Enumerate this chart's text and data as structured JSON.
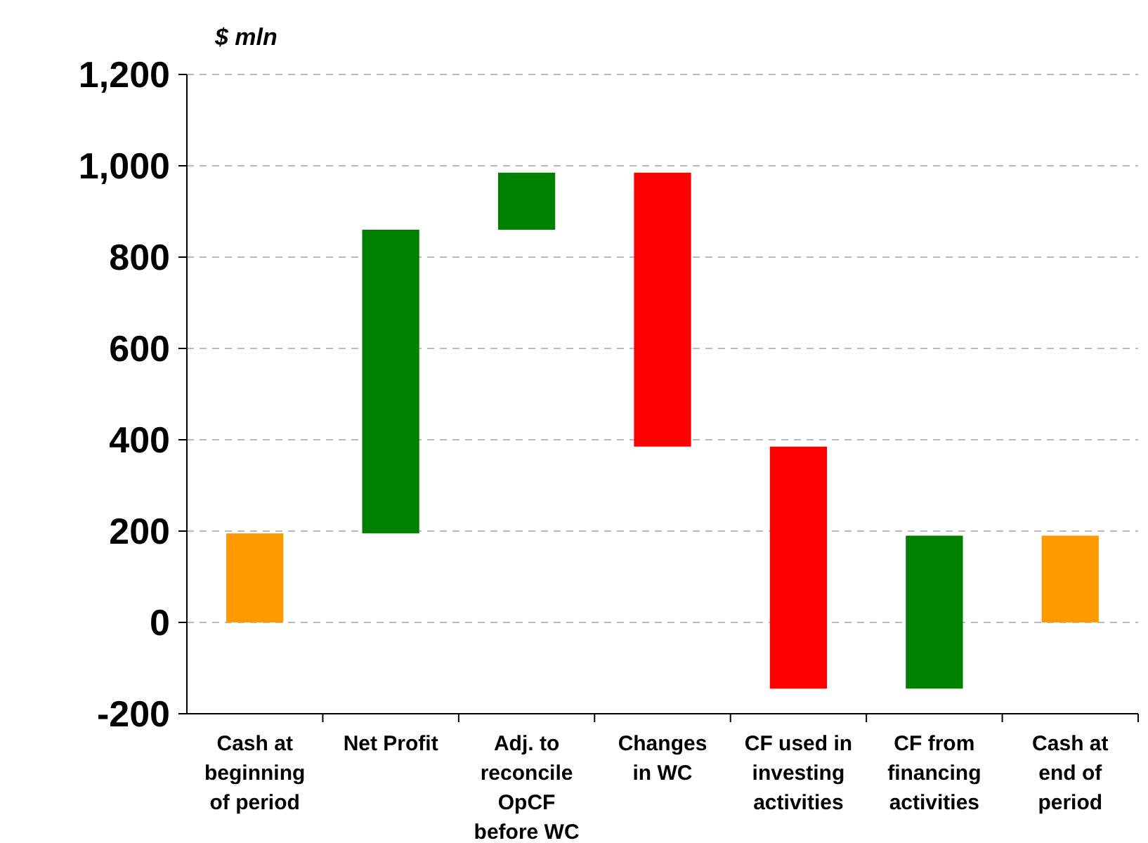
{
  "chart_data": {
    "type": "bar",
    "ylabel": "$ mln",
    "categories": [
      "Cash at beginning of period",
      "Net Profit",
      "Adj. to reconcile OpCF before WC",
      "Changes in WC",
      "CF used in investing activities",
      "CF from financing activities",
      "Cash at end of period"
    ],
    "values": [
      195,
      665,
      125,
      -600,
      -530,
      335,
      190
    ],
    "base": [
      0,
      195,
      860,
      985,
      385,
      -145,
      0
    ],
    "colors": [
      "#ff9900",
      "#008000",
      "#008000",
      "#ff0000",
      "#ff0000",
      "#008000",
      "#ff9900"
    ],
    "ylim": [
      -200,
      1200
    ],
    "yticks": [
      {
        "value": -200,
        "label": "-200"
      },
      {
        "value": 0,
        "label": "0"
      },
      {
        "value": 200,
        "label": "200"
      },
      {
        "value": 400,
        "label": "400"
      },
      {
        "value": 600,
        "label": "600"
      },
      {
        "value": 800,
        "label": "800"
      },
      {
        "value": 1000,
        "label": "1,000"
      },
      {
        "value": 1200,
        "label": "1,200"
      }
    ],
    "grid": "y"
  }
}
